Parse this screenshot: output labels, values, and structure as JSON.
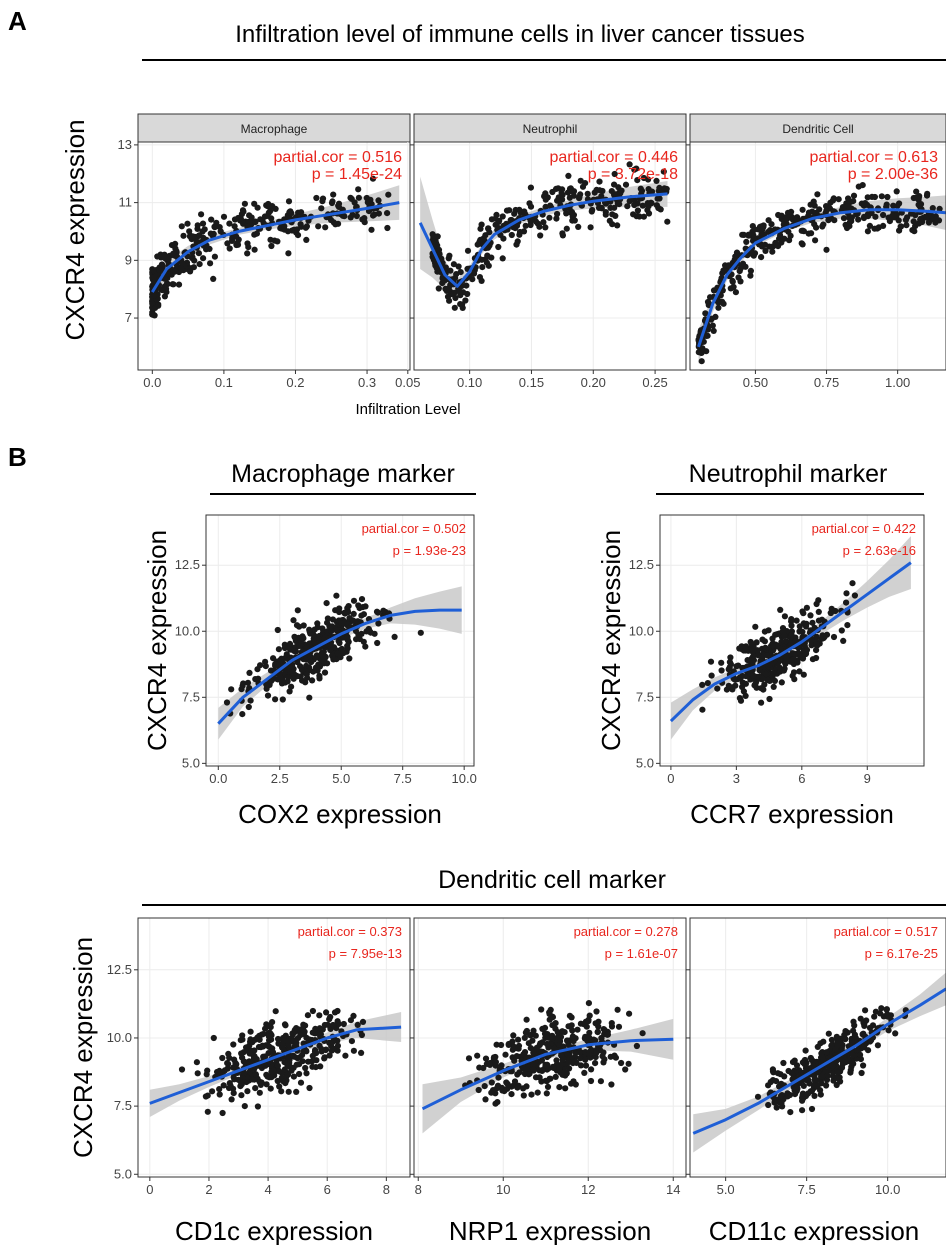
{
  "panel_labels": {
    "a": "A",
    "b": "B"
  },
  "colors": {
    "points": "#1a1a1a",
    "fit_line": "#1f5fd6",
    "ci_band": "#c9c9c9",
    "stats_text": "#e8261e",
    "strip_fill": "#d9d9d9",
    "grid": "#ececec"
  },
  "section_a": {
    "title": "Infiltration level of immune cells in liver cancer tissues",
    "ylabel": "CXCR4 expression",
    "xlabel": "Infiltration Level"
  },
  "section_b": {
    "macrophage_title": "Macrophage marker",
    "neutrophil_title": "Neutrophil marker",
    "dendritic_title": "Dendritic cell marker"
  },
  "chart_data": [
    {
      "type": "scatter",
      "strip": "Macrophage",
      "stat1": "partial.cor = 0.516",
      "stat2": "p = 1.45e-24",
      "xlim": [
        -0.02,
        0.36
      ],
      "ylim": [
        5.2,
        13.1
      ],
      "xticks": [
        0.0,
        0.1,
        0.2,
        0.3
      ],
      "xtick_labels": [
        "0.0",
        "0.1",
        "0.2",
        "0.3"
      ],
      "yticks": [
        7,
        9,
        11,
        13
      ],
      "ytick_labels": [
        "7",
        "9",
        "11",
        "13"
      ],
      "fit": {
        "x": [
          0.0,
          0.02,
          0.05,
          0.08,
          0.12,
          0.16,
          0.2,
          0.25,
          0.3,
          0.345
        ],
        "y": [
          7.9,
          8.7,
          9.3,
          9.7,
          10.0,
          10.2,
          10.4,
          10.6,
          10.8,
          11.0
        ]
      },
      "ci": [
        0.35,
        0.28,
        0.2,
        0.15,
        0.12,
        0.14,
        0.2,
        0.3,
        0.45,
        0.6
      ]
    },
    {
      "type": "scatter",
      "strip": "Neutrophil",
      "stat1": "partial.cor = 0.446",
      "stat2": "p = 3.72e-18",
      "xlim": [
        0.055,
        0.275
      ],
      "ylim": [
        5.2,
        13.1
      ],
      "xticks": [
        0.05,
        0.1,
        0.15,
        0.2,
        0.25
      ],
      "xtick_labels": [
        "0.05",
        "0.10",
        "0.15",
        "0.20",
        "0.25"
      ],
      "yticks": [
        7,
        9,
        11,
        13
      ],
      "ytick_labels": [
        "",
        "",
        "",
        ""
      ],
      "fit": {
        "x": [
          0.06,
          0.07,
          0.08,
          0.09,
          0.1,
          0.11,
          0.12,
          0.14,
          0.16,
          0.18,
          0.2,
          0.23,
          0.26
        ],
        "y": [
          10.3,
          9.4,
          8.5,
          8.1,
          8.6,
          9.4,
          9.9,
          10.4,
          10.7,
          10.9,
          11.05,
          11.2,
          11.3
        ]
      },
      "ci": [
        1.6,
        1.0,
        0.5,
        0.25,
        0.2,
        0.18,
        0.18,
        0.15,
        0.15,
        0.18,
        0.25,
        0.35,
        0.45
      ]
    },
    {
      "type": "scatter",
      "strip": "Dendritic Cell",
      "stat1": "partial.cor = 0.613",
      "stat2": "p = 2.00e-36",
      "xlim": [
        0.27,
        1.17
      ],
      "ylim": [
        5.2,
        13.1
      ],
      "xticks": [
        0.5,
        0.75,
        1.0
      ],
      "xtick_labels": [
        "0.50",
        "0.75",
        "1.00"
      ],
      "yticks": [
        7,
        9,
        11,
        13
      ],
      "ytick_labels": [
        "",
        "",
        "",
        ""
      ],
      "fit": {
        "x": [
          0.3,
          0.35,
          0.4,
          0.45,
          0.5,
          0.6,
          0.7,
          0.8,
          0.9,
          1.0,
          1.1,
          1.17
        ],
        "y": [
          6.0,
          7.5,
          8.5,
          9.1,
          9.6,
          10.1,
          10.45,
          10.65,
          10.75,
          10.75,
          10.7,
          10.65
        ]
      },
      "ci": [
        0.6,
        0.3,
        0.2,
        0.15,
        0.12,
        0.12,
        0.15,
        0.2,
        0.3,
        0.4,
        0.5,
        0.6
      ]
    },
    {
      "type": "scatter",
      "strip": "",
      "stat1": "partial.cor = 0.502",
      "stat2": "p = 1.93e-23",
      "xlim": [
        -0.5,
        10.4
      ],
      "ylim": [
        4.9,
        14.4
      ],
      "xticks": [
        0,
        2.5,
        5,
        7.5,
        10
      ],
      "xtick_labels": [
        "0.0",
        "2.5",
        "5.0",
        "7.5",
        "10.0"
      ],
      "yticks": [
        5,
        7.5,
        10,
        12.5
      ],
      "ytick_labels": [
        "5.0",
        "7.5",
        "10.0",
        "12.5"
      ],
      "xlabel": "COX2 expression",
      "ylabel": "CXCR4 expression",
      "fit": {
        "x": [
          0,
          1,
          2,
          3,
          4,
          5,
          6,
          7,
          8,
          9,
          9.9
        ],
        "y": [
          6.5,
          7.5,
          8.2,
          8.9,
          9.4,
          9.9,
          10.3,
          10.6,
          10.75,
          10.8,
          10.8
        ]
      },
      "ci": [
        0.6,
        0.35,
        0.25,
        0.2,
        0.18,
        0.18,
        0.2,
        0.3,
        0.5,
        0.7,
        0.9
      ]
    },
    {
      "type": "scatter",
      "strip": "",
      "stat1": "partial.cor = 0.422",
      "stat2": "p = 2.63e-16",
      "xlim": [
        -0.5,
        11.6
      ],
      "ylim": [
        4.9,
        14.4
      ],
      "xticks": [
        0,
        3,
        6,
        9
      ],
      "xtick_labels": [
        "0",
        "3",
        "6",
        "9"
      ],
      "yticks": [
        5,
        7.5,
        10,
        12.5
      ],
      "ytick_labels": [
        "5.0",
        "7.5",
        "10.0",
        "12.5"
      ],
      "xlabel": "CCR7 expression",
      "ylabel": "CXCR4 expression",
      "fit": {
        "x": [
          0,
          1,
          2,
          3,
          4,
          5,
          6,
          7,
          8,
          9,
          10,
          11
        ],
        "y": [
          6.6,
          7.4,
          8.0,
          8.4,
          8.7,
          9.1,
          9.6,
          10.2,
          10.8,
          11.4,
          12.0,
          12.6
        ]
      },
      "ci": [
        0.7,
        0.4,
        0.25,
        0.2,
        0.18,
        0.18,
        0.2,
        0.25,
        0.35,
        0.5,
        0.7,
        1.0
      ]
    },
    {
      "type": "scatter",
      "strip": "",
      "stat1": "partial.cor = 0.373",
      "stat2": "p = 7.95e-13",
      "xlim": [
        -0.4,
        8.8
      ],
      "ylim": [
        4.9,
        14.4
      ],
      "xticks": [
        0,
        2,
        4,
        6,
        8
      ],
      "xtick_labels": [
        "0",
        "2",
        "4",
        "6",
        "8"
      ],
      "yticks": [
        5,
        7.5,
        10,
        12.5
      ],
      "ytick_labels": [
        "5.0",
        "7.5",
        "10.0",
        "12.5"
      ],
      "xlabel": "CD1c expression",
      "ylabel": "CXCR4 expression",
      "fit": {
        "x": [
          0,
          1,
          2,
          3,
          4,
          5,
          6,
          7,
          8.5
        ],
        "y": [
          7.6,
          8.0,
          8.4,
          8.8,
          9.2,
          9.6,
          10.0,
          10.3,
          10.4
        ]
      },
      "ci": [
        0.5,
        0.3,
        0.2,
        0.15,
        0.15,
        0.15,
        0.2,
        0.3,
        0.55
      ]
    },
    {
      "type": "scatter",
      "strip": "",
      "stat1": "partial.cor = 0.278",
      "stat2": "p = 1.61e-07",
      "xlim": [
        7.9,
        14.3
      ],
      "ylim": [
        4.9,
        14.4
      ],
      "xticks": [
        8,
        10,
        12,
        14
      ],
      "xtick_labels": [
        "8",
        "10",
        "12",
        "14"
      ],
      "yticks": [
        5,
        7.5,
        10,
        12.5
      ],
      "ytick_labels": [
        "",
        "",
        "",
        ""
      ],
      "xlabel": "NRP1 expression",
      "fit": {
        "x": [
          8.1,
          9,
          10,
          11,
          12,
          13,
          14
        ],
        "y": [
          7.4,
          8.1,
          8.8,
          9.4,
          9.75,
          9.9,
          9.95
        ]
      },
      "ci": [
        0.9,
        0.45,
        0.25,
        0.18,
        0.2,
        0.4,
        0.75
      ]
    },
    {
      "type": "scatter",
      "strip": "",
      "stat1": "partial.cor = 0.517",
      "stat2": "p = 6.17e-25",
      "xlim": [
        3.9,
        11.8
      ],
      "ylim": [
        4.9,
        14.4
      ],
      "xticks": [
        5,
        7.5,
        10
      ],
      "xtick_labels": [
        "5.0",
        "7.5",
        "10.0"
      ],
      "yticks": [
        5,
        7.5,
        10,
        12.5
      ],
      "ytick_labels": [
        "",
        "",
        "",
        ""
      ],
      "xlabel": "CD11c expression",
      "fit": {
        "x": [
          4,
          5,
          6,
          7,
          8,
          9,
          10,
          11,
          11.8
        ],
        "y": [
          6.5,
          7.0,
          7.6,
          8.3,
          9.0,
          9.7,
          10.5,
          11.2,
          11.8
        ]
      },
      "ci": [
        0.7,
        0.4,
        0.25,
        0.18,
        0.15,
        0.18,
        0.25,
        0.4,
        0.6
      ]
    }
  ]
}
